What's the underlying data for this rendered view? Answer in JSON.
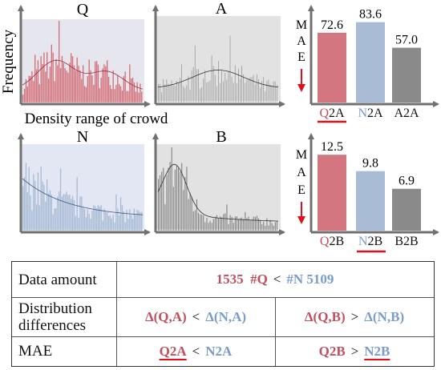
{
  "hist_titles": {
    "q": "Q",
    "a": "A",
    "n": "N",
    "b": "B"
  },
  "ylabel": "Frequency",
  "xlabel": "Density range of crowd",
  "mae_axis_letters": [
    "M",
    "A",
    "E"
  ],
  "colors": {
    "red": "#d4707a",
    "red_bar": "#d37680",
    "blue": "#a9bcd6",
    "gray": "#8a8a8a",
    "red_text": "#c0505e",
    "blue_text": "#7a9cc8",
    "underline": "#e3101b"
  },
  "chart_data": [
    {
      "type": "bar",
      "categories": [
        "Q2A",
        "N2A",
        "A2A"
      ],
      "values": [
        72.6,
        83.6,
        57.0
      ],
      "value_labels": [
        "72.6",
        "83.6",
        "57.0"
      ],
      "ylim": [
        0,
        95
      ],
      "ylabel": "MAE",
      "underlined": "Q2A"
    },
    {
      "type": "bar",
      "categories": [
        "Q2B",
        "N2B",
        "B2B"
      ],
      "values": [
        12.5,
        9.8,
        6.9
      ],
      "value_labels": [
        "12.5",
        "9.8",
        "6.9"
      ],
      "ylim": [
        0,
        14.5
      ],
      "ylabel": "MAE",
      "underlined": "N2B"
    }
  ],
  "table": {
    "row1_label": "Data amount",
    "row1": {
      "q_count": "1535",
      "q_tag": "#Q",
      "lt": "<",
      "n_tag": "#N",
      "n_count": "5109"
    },
    "row2_label_line1": "Distribution",
    "row2_label_line2": "differences",
    "row2_left": {
      "a": "Δ(Q,A)",
      "op": "<",
      "b": "Δ(N,A)"
    },
    "row2_right": {
      "a": "Δ(Q,B)",
      "op": ">",
      "b": "Δ(N,B)"
    },
    "row3_label": "MAE",
    "row3_left": {
      "a": "Q2A",
      "op": "<",
      "b": "N2A"
    },
    "row3_right": {
      "a": "Q2B",
      "op": ">",
      "b": "N2B"
    }
  }
}
